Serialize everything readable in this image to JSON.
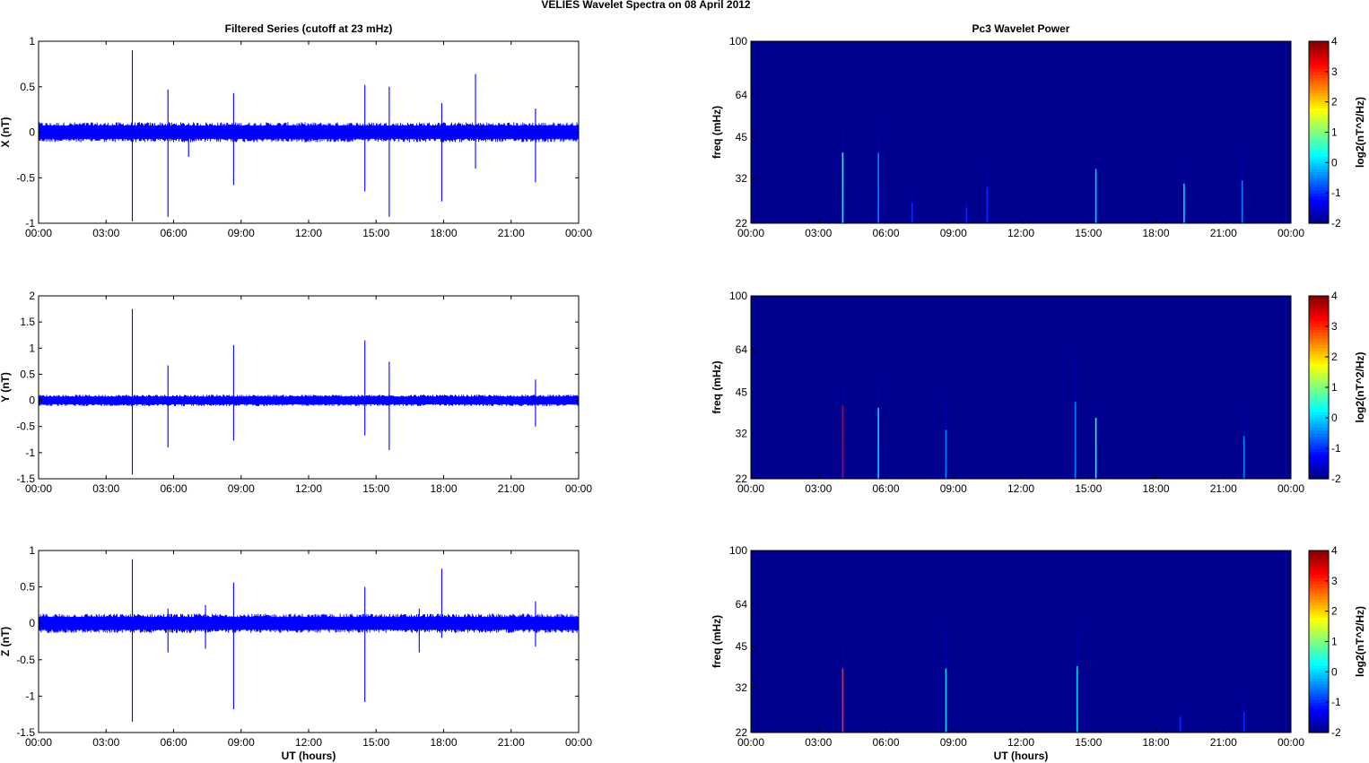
{
  "figure_title": "VELIES Wavelet Spectra on 08 April     2012",
  "colors": {
    "trace": "#0000ff",
    "background_spectrum": "#00008f",
    "axis": "#000000",
    "colormap": [
      "#00007f",
      "#0000ff",
      "#007fff",
      "#00ffff",
      "#7fff7f",
      "#ffff00",
      "#ff7f00",
      "#ff0000",
      "#7f0000"
    ]
  },
  "chart_data": [
    {
      "type": "line",
      "title": "Filtered Series (cutoff at 23 mHz)",
      "xlabel": "",
      "ylabel": "X (nT)",
      "xlim": [
        "00:00",
        "24:00"
      ],
      "xticks": [
        "00:00",
        "03:00",
        "06:00",
        "09:00",
        "12:00",
        "15:00",
        "18:00",
        "21:00",
        "00:00"
      ],
      "ylim": [
        -1,
        1
      ],
      "yticks": [
        "-1",
        "-0.5",
        "0",
        "0.5",
        "1"
      ],
      "noise_band": [
        -0.1,
        0.1
      ],
      "spikes": [
        {
          "t": "04:10",
          "max": 0.9,
          "min": -0.98
        },
        {
          "t": "05:45",
          "max": 0.47,
          "min": -0.93
        },
        {
          "t": "06:40",
          "max": 0.1,
          "min": -0.27
        },
        {
          "t": "08:40",
          "max": 0.43,
          "min": -0.58
        },
        {
          "t": "14:30",
          "max": 0.52,
          "min": -0.65
        },
        {
          "t": "15:35",
          "max": 0.5,
          "min": -0.93
        },
        {
          "t": "17:55",
          "max": 0.32,
          "min": -0.76
        },
        {
          "t": "19:25",
          "max": 0.64,
          "min": -0.4
        },
        {
          "t": "22:05",
          "max": 0.26,
          "min": -0.55
        }
      ]
    },
    {
      "type": "heatmap",
      "title": "Pc3 Wavelet Power",
      "xlabel": "",
      "ylabel": "freq (mHz)",
      "xticks": [
        "00:00",
        "03:00",
        "06:00",
        "09:00",
        "12:00",
        "15:00",
        "18:00",
        "21:00",
        "00:00"
      ],
      "yticks": [
        "22",
        "32",
        "45",
        "64",
        "100"
      ],
      "ylim": [
        22,
        100
      ],
      "colorbar_label": "log2(nT^2/Hz)",
      "colorbar_ticks": [
        "-2",
        "-1",
        "0",
        "1",
        "2",
        "3",
        "4"
      ],
      "clim": [
        -2,
        4
      ],
      "bursts": [
        {
          "t": "04:05",
          "fmax": 64,
          "level": 0.5
        },
        {
          "t": "05:40",
          "fmax": 64,
          "level": -0.5
        },
        {
          "t": "07:10",
          "fmax": 30,
          "level": -1
        },
        {
          "t": "09:35",
          "fmax": 28,
          "level": -1
        },
        {
          "t": "10:30",
          "fmax": 38,
          "level": -1
        },
        {
          "t": "15:20",
          "fmax": 50,
          "level": 0
        },
        {
          "t": "19:15",
          "fmax": 40,
          "level": 0
        },
        {
          "t": "21:50",
          "fmax": 42,
          "level": -0.5
        }
      ]
    },
    {
      "type": "line",
      "title": "",
      "xlabel": "",
      "ylabel": "Y (nT)",
      "xlim": [
        "00:00",
        "24:00"
      ],
      "xticks": [
        "00:00",
        "03:00",
        "06:00",
        "09:00",
        "12:00",
        "15:00",
        "18:00",
        "21:00",
        "00:00"
      ],
      "ylim": [
        -1.5,
        2
      ],
      "yticks": [
        "-1.5",
        "-1",
        "-0.5",
        "0",
        "0.5",
        "1",
        "1.5",
        "2"
      ],
      "noise_band": [
        -0.1,
        0.1
      ],
      "spikes": [
        {
          "t": "04:10",
          "max": 1.75,
          "min": -1.42
        },
        {
          "t": "05:45",
          "max": 0.67,
          "min": -0.9
        },
        {
          "t": "08:40",
          "max": 1.06,
          "min": -0.77
        },
        {
          "t": "14:30",
          "max": 1.15,
          "min": -0.67
        },
        {
          "t": "15:35",
          "max": 0.74,
          "min": -0.95
        },
        {
          "t": "22:05",
          "max": 0.4,
          "min": -0.5
        }
      ]
    },
    {
      "type": "heatmap",
      "title": "",
      "xlabel": "",
      "ylabel": "freq (mHz)",
      "xticks": [
        "00:00",
        "03:00",
        "06:00",
        "09:00",
        "12:00",
        "15:00",
        "18:00",
        "21:00",
        "00:00"
      ],
      "yticks": [
        "22",
        "32",
        "45",
        "64",
        "100"
      ],
      "ylim": [
        22,
        100
      ],
      "colorbar_label": "log2(nT^2/Hz)",
      "colorbar_ticks": [
        "-2",
        "-1",
        "0",
        "1",
        "2",
        "3",
        "4"
      ],
      "clim": [
        -2,
        4
      ],
      "bursts": [
        {
          "t": "04:05",
          "fmax": 66,
          "level": 3.5
        },
        {
          "t": "05:40",
          "fmax": 64,
          "level": 0
        },
        {
          "t": "08:40",
          "fmax": 46,
          "level": -0.5
        },
        {
          "t": "14:25",
          "fmax": 70,
          "level": -0.5
        },
        {
          "t": "15:20",
          "fmax": 55,
          "level": 0.5
        },
        {
          "t": "21:55",
          "fmax": 42,
          "level": -0.5
        }
      ]
    },
    {
      "type": "line",
      "title": "",
      "xlabel": "UT (hours)",
      "ylabel": "Z (nT)",
      "xlim": [
        "00:00",
        "24:00"
      ],
      "xticks": [
        "00:00",
        "03:00",
        "06:00",
        "09:00",
        "12:00",
        "15:00",
        "18:00",
        "21:00",
        "00:00"
      ],
      "ylim": [
        -1.5,
        1
      ],
      "yticks": [
        "-1.5",
        "-1",
        "-0.5",
        "0",
        "0.5",
        "1"
      ],
      "noise_band": [
        -0.12,
        0.12
      ],
      "spikes": [
        {
          "t": "04:10",
          "max": 0.88,
          "min": -1.35
        },
        {
          "t": "05:45",
          "max": 0.2,
          "min": -0.4
        },
        {
          "t": "07:25",
          "max": 0.25,
          "min": -0.35
        },
        {
          "t": "08:40",
          "max": 0.56,
          "min": -1.18
        },
        {
          "t": "14:30",
          "max": 0.5,
          "min": -1.08
        },
        {
          "t": "16:55",
          "max": 0.2,
          "min": -0.4
        },
        {
          "t": "17:55",
          "max": 0.75,
          "min": -0.2
        },
        {
          "t": "22:05",
          "max": 0.3,
          "min": -0.32
        }
      ]
    },
    {
      "type": "heatmap",
      "title": "",
      "xlabel": "UT (hours)",
      "ylabel": "freq (mHz)",
      "xticks": [
        "00:00",
        "03:00",
        "06:00",
        "09:00",
        "12:00",
        "15:00",
        "18:00",
        "21:00",
        "00:00"
      ],
      "yticks": [
        "22",
        "32",
        "45",
        "64",
        "100"
      ],
      "ylim": [
        22,
        100
      ],
      "colorbar_label": "log2(nT^2/Hz)",
      "colorbar_ticks": [
        "-2",
        "-1",
        "0",
        "1",
        "2",
        "3",
        "4"
      ],
      "clim": [
        -2,
        4
      ],
      "bursts": [
        {
          "t": "04:05",
          "fmax": 58,
          "level": 3
        },
        {
          "t": "08:40",
          "fmax": 58,
          "level": 0
        },
        {
          "t": "14:30",
          "fmax": 60,
          "level": 0
        },
        {
          "t": "19:05",
          "fmax": 28,
          "level": -1
        },
        {
          "t": "21:55",
          "fmax": 30,
          "level": -1
        }
      ]
    }
  ]
}
